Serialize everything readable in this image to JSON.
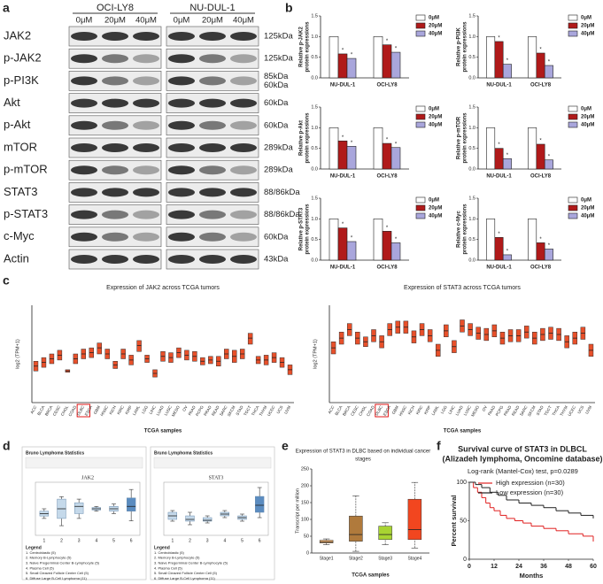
{
  "panels": [
    "a",
    "b",
    "c",
    "d",
    "e",
    "f"
  ],
  "blot": {
    "cell_lines": [
      "OCI-LY8",
      "NU-DUL-1"
    ],
    "doses": [
      "0μM",
      "20μM",
      "40μM"
    ],
    "proteins": [
      {
        "name": "JAK2",
        "size": [
          "125kDa"
        ]
      },
      {
        "name": "p-JAK2",
        "size": [
          "125kDa"
        ]
      },
      {
        "name": "p-PI3K",
        "size": [
          "85kDa",
          "60kDa"
        ]
      },
      {
        "name": "Akt",
        "size": [
          "60kDa"
        ]
      },
      {
        "name": "p-Akt",
        "size": [
          "60kDa"
        ]
      },
      {
        "name": "mTOR",
        "size": [
          "289kDa"
        ]
      },
      {
        "name": "p-mTOR",
        "size": [
          "289kDa"
        ]
      },
      {
        "name": "STAT3",
        "size": [
          "88/86kDa"
        ]
      },
      {
        "name": "p-STAT3",
        "size": [
          "88/86kDa"
        ]
      },
      {
        "name": "c-Myc",
        "size": [
          "60kDa"
        ]
      },
      {
        "name": "Actin",
        "size": [
          "43kDa"
        ]
      }
    ]
  },
  "chart_data": [
    {
      "type": "bar",
      "ylabel": [
        "Relative p-JAK2",
        "protein expressions"
      ],
      "categories": [
        "NU-DUL-1",
        "OCI-LY8"
      ],
      "series": [
        {
          "name": "0μM",
          "color": "#ffffff",
          "values": [
            1,
            1
          ]
        },
        {
          "name": "20μM",
          "color": "#b01a1a",
          "values": [
            0.58,
            0.8
          ]
        },
        {
          "name": "40μM",
          "color": "#a9a6dc",
          "values": [
            0.47,
            0.62
          ]
        }
      ],
      "ylim": [
        0,
        1.5
      ],
      "yticks": [
        {
          "value": 0,
          "label": "0.0"
        },
        {
          "value": 0.5,
          "label": "0.5"
        },
        {
          "value": 1,
          "label": "1.0"
        },
        {
          "value": 1.5,
          "label": "1.5"
        }
      ],
      "annotation": "*"
    },
    {
      "type": "bar",
      "ylabel": [
        "Relative p-PI3K",
        "protein expressions"
      ],
      "categories": [
        "NU-DUL-1",
        "OCI-LY8"
      ],
      "series": [
        {
          "name": "0μM",
          "color": "#ffffff",
          "values": [
            1,
            1
          ]
        },
        {
          "name": "20μM",
          "color": "#b01a1a",
          "values": [
            0.88,
            0.6
          ]
        },
        {
          "name": "40μM",
          "color": "#a9a6dc",
          "values": [
            0.33,
            0.3
          ]
        }
      ],
      "ylim": [
        0,
        1.5
      ],
      "yticks": [
        {
          "value": 0,
          "label": "0.0"
        },
        {
          "value": 0.5,
          "label": "0.5"
        },
        {
          "value": 1,
          "label": "1.0"
        },
        {
          "value": 1.5,
          "label": "1.5"
        }
      ],
      "annotation": "*"
    },
    {
      "type": "bar",
      "ylabel": [
        "Relative p-Akt",
        "protein expressions"
      ],
      "categories": [
        "NU-DUL-1",
        "OCI-LY8"
      ],
      "series": [
        {
          "name": "0μM",
          "color": "#ffffff",
          "values": [
            1,
            1
          ]
        },
        {
          "name": "20μM",
          "color": "#b01a1a",
          "values": [
            0.68,
            0.62
          ]
        },
        {
          "name": "40μM",
          "color": "#a9a6dc",
          "values": [
            0.55,
            0.52
          ]
        }
      ],
      "ylim": [
        0,
        1.5
      ],
      "yticks": [
        {
          "value": 0,
          "label": "0.0"
        },
        {
          "value": 0.5,
          "label": "0.5"
        },
        {
          "value": 1,
          "label": "1.0"
        },
        {
          "value": 1.5,
          "label": "1.5"
        }
      ],
      "annotation": "*"
    },
    {
      "type": "bar",
      "ylabel": [
        "Relative p-mTOR",
        "protein expressions"
      ],
      "categories": [
        "NU-DUL-1",
        "OCI-LY8"
      ],
      "series": [
        {
          "name": "0μM",
          "color": "#ffffff",
          "values": [
            1,
            1
          ]
        },
        {
          "name": "20μM",
          "color": "#b01a1a",
          "values": [
            0.5,
            0.6
          ]
        },
        {
          "name": "40μM",
          "color": "#a9a6dc",
          "values": [
            0.25,
            0.22
          ]
        }
      ],
      "ylim": [
        0,
        1.5
      ],
      "yticks": [
        {
          "value": 0,
          "label": "0.0"
        },
        {
          "value": 0.5,
          "label": "0.5"
        },
        {
          "value": 1,
          "label": "1.0"
        },
        {
          "value": 1.5,
          "label": "1.5"
        }
      ],
      "annotation": "*"
    },
    {
      "type": "bar",
      "ylabel": [
        "Relative p-STAT3",
        "protein expressions"
      ],
      "categories": [
        "NU-DUL-1",
        "OCI-LY8"
      ],
      "series": [
        {
          "name": "0μM",
          "color": "#ffffff",
          "values": [
            1,
            1
          ]
        },
        {
          "name": "20μM",
          "color": "#b01a1a",
          "values": [
            0.78,
            0.7
          ]
        },
        {
          "name": "40μM",
          "color": "#a9a6dc",
          "values": [
            0.45,
            0.42
          ]
        }
      ],
      "ylim": [
        0,
        1.5
      ],
      "yticks": [
        {
          "value": 0,
          "label": "0.0"
        },
        {
          "value": 0.5,
          "label": "0.5"
        },
        {
          "value": 1,
          "label": "1.0"
        },
        {
          "value": 1.5,
          "label": "1.5"
        }
      ],
      "annotation": "*"
    },
    {
      "type": "bar",
      "ylabel": [
        "Relative c-Myc",
        "protein expressions"
      ],
      "categories": [
        "NU-DUL-1",
        "OCI-LY8"
      ],
      "series": [
        {
          "name": "0μM",
          "color": "#ffffff",
          "values": [
            1,
            1
          ]
        },
        {
          "name": "20μM",
          "color": "#b01a1a",
          "values": [
            0.55,
            0.42
          ]
        },
        {
          "name": "40μM",
          "color": "#a9a6dc",
          "values": [
            0.13,
            0.27
          ]
        }
      ],
      "ylim": [
        0,
        1.5
      ],
      "yticks": [
        {
          "value": 0,
          "label": "0.0"
        },
        {
          "value": 0.5,
          "label": "0.5"
        },
        {
          "value": 1,
          "label": "1.0"
        },
        {
          "value": 1.5,
          "label": "1.5"
        }
      ],
      "annotation": "*"
    },
    {
      "type": "box",
      "title": [
        "Expression of JAK2 across TCGA tumors"
      ],
      "ylabel": "log2 (TPM+1)",
      "xlabel": "TCGA samples",
      "color": "#e8502a",
      "highlight_index": 6,
      "ylim": [
        0,
        8
      ],
      "categories": [
        "ACC",
        "BLCA",
        "BRCA",
        "CESC",
        "CHOL",
        "COAD",
        "DLBC",
        "ESCA",
        "GBM",
        "HNSC",
        "KICH",
        "KIRC",
        "KIRP",
        "LAML",
        "LGG",
        "LIHC",
        "LUAD",
        "LUSC",
        "MESO",
        "OV",
        "PAAD",
        "PCPG",
        "PRAD",
        "READ",
        "SARC",
        "SKCM",
        "STAD",
        "TGCT",
        "THCA",
        "THYM",
        "UCEC",
        "UCS",
        "UVM"
      ],
      "q1": [
        2.6,
        2.9,
        3.2,
        3.5,
        2.5,
        3.2,
        3.6,
        3.7,
        4.0,
        3.6,
        2.8,
        3.6,
        3.1,
        4.2,
        3.3,
        2.1,
        3.4,
        3.3,
        3.7,
        3.5,
        3.4,
        3.1,
        3.2,
        3.0,
        3.6,
        3.3,
        3.6,
        4.8,
        3.2,
        3.1,
        3.3,
        2.9,
        2.3
      ],
      "median": [
        3.0,
        3.3,
        3.6,
        3.9,
        2.6,
        3.6,
        4.0,
        4.1,
        4.5,
        4.0,
        3.1,
        4.0,
        3.5,
        4.7,
        3.6,
        2.4,
        3.8,
        3.7,
        4.1,
        3.9,
        3.8,
        3.4,
        3.5,
        3.4,
        4.0,
        3.8,
        4.0,
        5.3,
        3.5,
        3.5,
        3.7,
        3.3,
        2.7
      ],
      "q3": [
        3.4,
        3.7,
        4.0,
        4.3,
        2.7,
        4.0,
        4.4,
        4.5,
        4.9,
        4.4,
        3.4,
        4.4,
        3.9,
        5.1,
        3.9,
        2.7,
        4.2,
        4.1,
        4.5,
        4.3,
        4.2,
        3.7,
        3.8,
        3.8,
        4.4,
        4.3,
        4.4,
        5.7,
        3.8,
        3.9,
        4.1,
        3.7,
        3.1
      ]
    },
    {
      "type": "box",
      "title": [
        "Expression of STAT3 across TCGA tumors"
      ],
      "ylabel": "log2 (TPM+1)",
      "xlabel": "TCGA samples",
      "color": "#e8502a",
      "highlight_index": 6,
      "ylim": [
        0,
        8
      ],
      "categories": [
        "ACC",
        "BLCA",
        "BRCA",
        "CESC",
        "CHOL",
        "COAD",
        "DLBC",
        "ESCA",
        "GBM",
        "HNSC",
        "KICH",
        "KIRC",
        "KIRP",
        "LAML",
        "LGG",
        "LIHC",
        "LUAD",
        "LUSC",
        "MESO",
        "OV",
        "PAAD",
        "PCPG",
        "PRAD",
        "READ",
        "SARC",
        "SKCM",
        "STAD",
        "TGCT",
        "THCA",
        "THYM",
        "UCEC",
        "UCS",
        "UVM"
      ],
      "q1": [
        4.0,
        4.8,
        5.5,
        4.8,
        4.6,
        5.0,
        4.5,
        5.5,
        5.7,
        5.7,
        4.9,
        5.5,
        5.0,
        3.8,
        5.4,
        4.1,
        5.8,
        5.5,
        5.2,
        5.1,
        5.4,
        4.8,
        5.0,
        5.0,
        5.3,
        4.8,
        5.1,
        5.2,
        5.1,
        4.5,
        4.8,
        5.2,
        3.8
      ],
      "median": [
        4.5,
        5.3,
        6.0,
        5.3,
        5.0,
        5.5,
        5.0,
        6.0,
        6.2,
        6.2,
        5.4,
        6.0,
        5.5,
        4.3,
        5.9,
        4.6,
        6.3,
        6.0,
        5.7,
        5.6,
        5.9,
        5.3,
        5.5,
        5.5,
        5.8,
        5.3,
        5.6,
        5.7,
        5.6,
        5.0,
        5.3,
        5.7,
        4.3
      ],
      "q3": [
        5.0,
        5.8,
        6.5,
        5.8,
        5.4,
        6.0,
        5.5,
        6.5,
        6.7,
        6.7,
        5.9,
        6.5,
        6.0,
        4.8,
        6.4,
        5.1,
        6.8,
        6.5,
        6.2,
        6.1,
        6.4,
        5.8,
        6.0,
        6.0,
        6.3,
        5.8,
        6.1,
        6.2,
        6.1,
        5.5,
        5.8,
        6.2,
        4.8
      ]
    },
    {
      "type": "box",
      "header": "Bruno Lymphoma Statistics",
      "title": [
        "JAK2"
      ],
      "ylim": [
        -1.2,
        1.0
      ],
      "categories": [
        "1",
        "2",
        "3",
        "4",
        "5",
        "6"
      ],
      "colors": [
        "#c5d9ea",
        "#c5d9ea",
        "#c5d9ea",
        "#c5d9ea",
        "#c5d9ea",
        "#5b8cc0"
      ],
      "min": [
        -0.5,
        -0.8,
        -0.5,
        -0.2,
        -0.3,
        -0.6
      ],
      "q1": [
        -0.4,
        -0.5,
        -0.3,
        -0.15,
        -0.2,
        -0.2
      ],
      "median": [
        -0.3,
        -0.1,
        0.0,
        -0.1,
        -0.1,
        0.0
      ],
      "q3": [
        -0.2,
        0.3,
        0.15,
        -0.05,
        0.0,
        0.35
      ],
      "max": [
        -0.1,
        0.4,
        0.3,
        0.0,
        0.1,
        0.7
      ],
      "legend": [
        "Legend",
        "1. Centroblastic (5)",
        "2. Memory B-Lymphocyte (5)",
        "3. Naive Pregerminal Center B-Lymphocyte (5)",
        "4. Plasma Cell (5)",
        "5. Small Cleaved Follicle Center Cell (5)",
        "6. Diffuse Large B-Cell Lymphoma (11)"
      ]
    },
    {
      "type": "box",
      "header": "Bruno Lymphoma Statistics",
      "title": [
        "STAT3"
      ],
      "ylim": [
        -0.8,
        2.2
      ],
      "categories": [
        "1",
        "2",
        "3",
        "4",
        "5",
        "6"
      ],
      "colors": [
        "#c5d9ea",
        "#c5d9ea",
        "#c5d9ea",
        "#c5d9ea",
        "#c5d9ea",
        "#5b8cc0"
      ],
      "min": [
        0.0,
        -0.2,
        -0.1,
        0.2,
        0.0,
        0.2
      ],
      "q1": [
        0.1,
        0.0,
        0.0,
        0.3,
        0.1,
        0.5
      ],
      "median": [
        0.3,
        0.1,
        0.05,
        0.4,
        0.2,
        0.9
      ],
      "q3": [
        0.5,
        0.3,
        0.2,
        0.5,
        0.3,
        1.4
      ],
      "max": [
        0.6,
        0.5,
        0.3,
        0.6,
        0.4,
        1.9
      ],
      "legend": [
        "Legend",
        "1. Centroblastic (5)",
        "2. Memory B-Lymphocyte (5)",
        "3. Naive Pregerminal Center B-Lymphocyte (5)",
        "4. Plasma Cell (5)",
        "5. Small Cleaved Follicle Center Cell (5)",
        "6. Diffuse Large B-Cell Lymphoma (11)"
      ]
    },
    {
      "type": "box",
      "title": [
        "Expression of STAT3 in DLBC based on individual cancer",
        "stages"
      ],
      "ylabel": "Transcript per million",
      "xlabel": "TCGA samples",
      "ylim": [
        0,
        250
      ],
      "yticks": [
        0,
        50,
        100,
        150,
        200,
        250
      ],
      "categories": [
        "Stage1",
        "Stage2",
        "Stage3",
        "Stage4"
      ],
      "colors": [
        "#f5b26b",
        "#b07a3c",
        "#a8d432",
        "#f2461f"
      ],
      "min": [
        25,
        5,
        25,
        15
      ],
      "q1": [
        30,
        35,
        40,
        40
      ],
      "median": [
        33,
        55,
        55,
        70
      ],
      "q3": [
        38,
        110,
        80,
        160
      ],
      "max": [
        42,
        170,
        90,
        210
      ]
    },
    {
      "type": "line",
      "step": true,
      "title": [
        "Survival curve of STAT3 in DLBCL",
        "(Alizadeh lymphoma, Oncomine database)"
      ],
      "subtitle": "Log-rank (Mantel-Cox) test, p=0.0289",
      "xlabel": "Months",
      "ylabel": "Percent survival",
      "xlim": [
        0,
        60
      ],
      "xticks": [
        0,
        12,
        24,
        36,
        48,
        60
      ],
      "ylim": [
        0,
        100
      ],
      "yticks": [
        0,
        50,
        100
      ],
      "series": [
        {
          "name": "High expression (n=30)",
          "color": "#e02020",
          "x": [
            0,
            2,
            4,
            6,
            8,
            10,
            12,
            15,
            18,
            22,
            26,
            30,
            36,
            42,
            48,
            55,
            60
          ],
          "y": [
            100,
            93,
            87,
            80,
            73,
            67,
            63,
            57,
            53,
            50,
            47,
            43,
            40,
            37,
            33,
            30,
            23
          ]
        },
        {
          "name": "Low expression (n=30)",
          "color": "#222222",
          "x": [
            0,
            3,
            6,
            10,
            14,
            18,
            24,
            30,
            36,
            42,
            48,
            54,
            60
          ],
          "y": [
            100,
            97,
            93,
            87,
            83,
            77,
            73,
            70,
            67,
            63,
            60,
            57,
            53
          ]
        }
      ]
    }
  ]
}
